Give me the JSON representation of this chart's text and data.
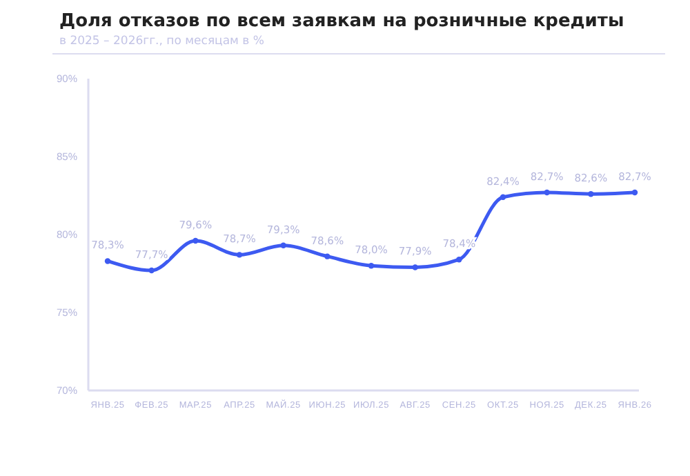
{
  "chart_data": {
    "type": "line",
    "title": "Доля отказов по всем заявкам на розничные кредиты",
    "subtitle": "в 2025 – 2026гг., по месяцам в %",
    "categories": [
      "ЯНВ.25",
      "ФЕВ.25",
      "МАР.25",
      "АПР.25",
      "МАЙ.25",
      "ИЮН.25",
      "ИЮЛ.25",
      "АВГ.25",
      "СЕН.25",
      "ОКТ.25",
      "НОЯ.25",
      "ДЕК.25",
      "ЯНВ.26"
    ],
    "series": [
      {
        "color": "#3d5af1",
        "values": [
          78.3,
          77.7,
          79.6,
          78.7,
          79.3,
          78.6,
          78.0,
          77.9,
          78.4,
          82.4,
          82.7,
          82.6,
          82.7
        ],
        "value_labels": [
          "78,3%",
          "77,7%",
          "79,6%",
          "78,7%",
          "79,3%",
          "78,6%",
          "78,0%",
          "77,9%",
          "78,4%",
          "82,4%",
          "82,7%",
          "82,6%",
          "82,7%"
        ]
      }
    ],
    "ylim": [
      70,
      90
    ],
    "yticks": [
      {
        "value": 70,
        "label": "70%"
      },
      {
        "value": 75,
        "label": "75%"
      },
      {
        "value": 80,
        "label": "80%"
      },
      {
        "value": 85,
        "label": "85%"
      },
      {
        "value": 90,
        "label": "90%"
      }
    ],
    "grid": false,
    "marker": "circle",
    "line_style": "solid"
  }
}
